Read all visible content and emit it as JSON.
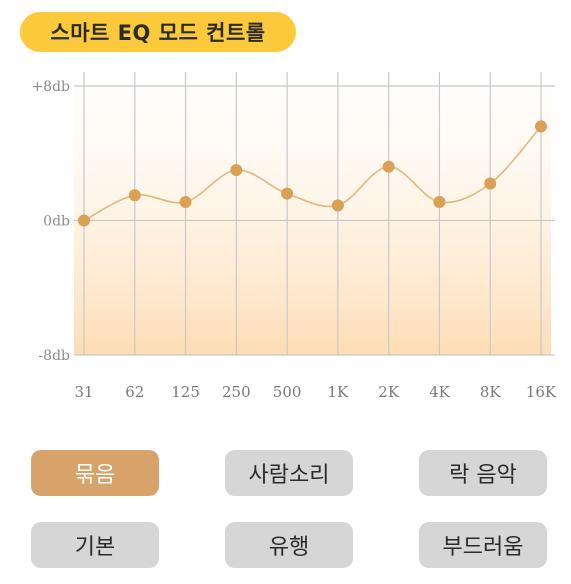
{
  "header": {
    "title": "스마트 EQ 모드 컨트롤"
  },
  "chart_data": {
    "type": "line",
    "categories": [
      "31",
      "62",
      "125",
      "250",
      "500",
      "1K",
      "2K",
      "4K",
      "8K",
      "16K"
    ],
    "values": [
      0,
      1.5,
      1.1,
      3.0,
      1.6,
      0.9,
      3.2,
      1.1,
      2.2,
      5.6
    ],
    "ylim": [
      -8,
      8
    ],
    "yticks": [
      {
        "value": 8,
        "label": "+8db"
      },
      {
        "value": 0,
        "label": "0db"
      },
      {
        "value": -8,
        "label": "-8db"
      }
    ],
    "grid": true
  },
  "modes": {
    "selected": "묶음",
    "buttons": [
      {
        "label": "묶음",
        "active": true
      },
      {
        "label": "사람소리",
        "active": false
      },
      {
        "label": "락 음악",
        "active": false
      },
      {
        "label": "기본",
        "active": false
      },
      {
        "label": "유행",
        "active": false
      },
      {
        "label": "부드러움",
        "active": false
      }
    ]
  },
  "colors": {
    "accent": "#fcc93a",
    "line": "#e6b67a",
    "point": "#d9a056",
    "active_button": "#d7a36a",
    "inactive_button": "#d6d6d6"
  }
}
